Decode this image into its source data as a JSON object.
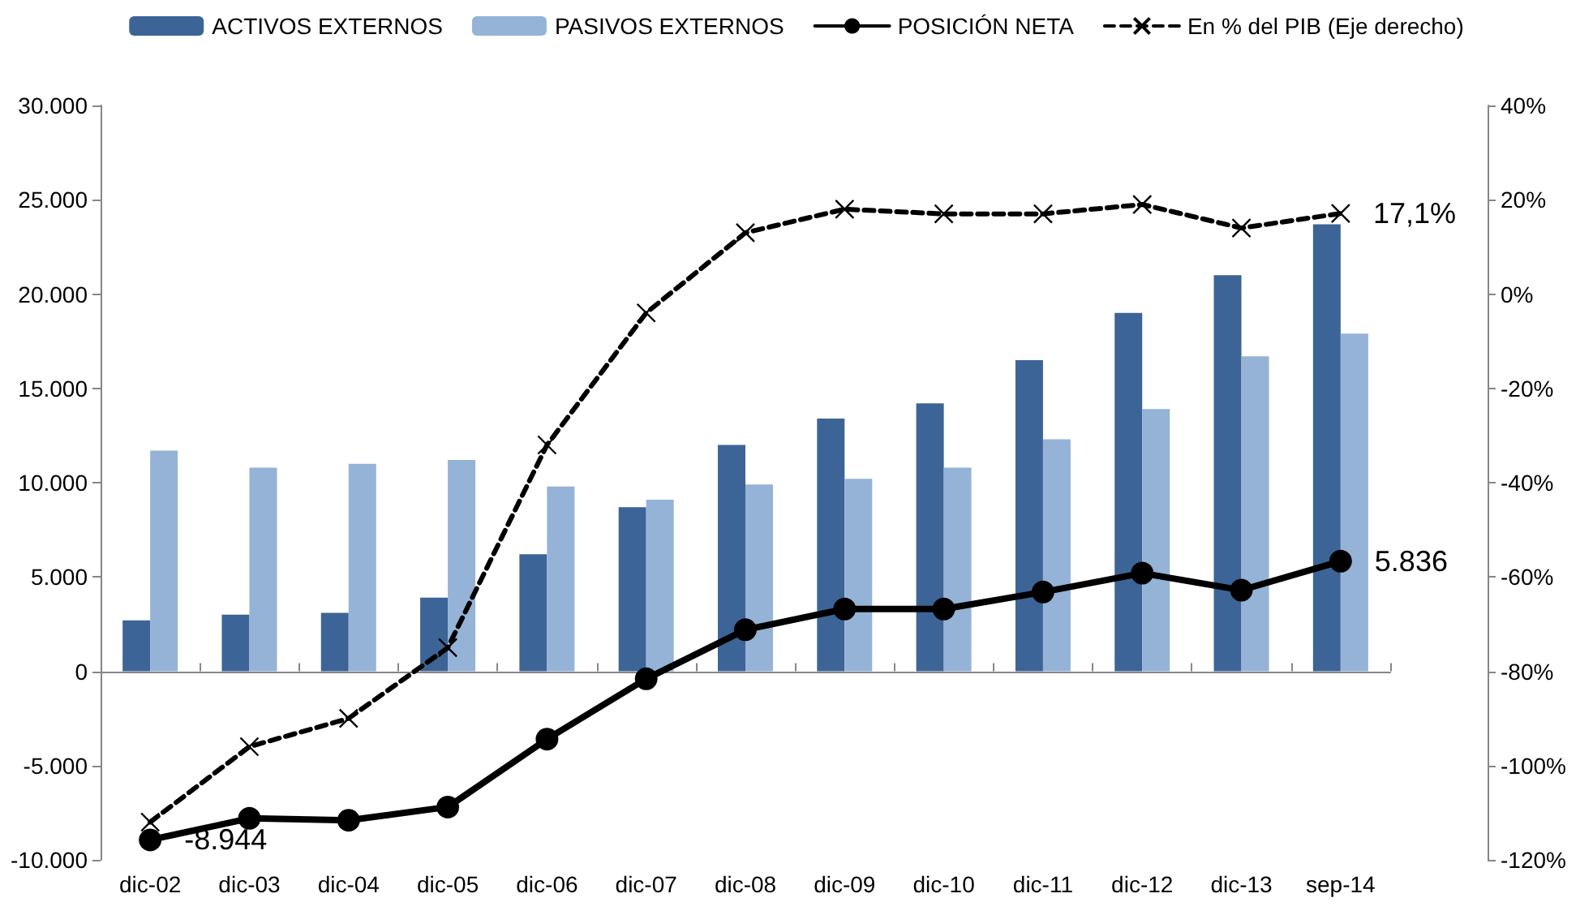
{
  "chart_data": {
    "type": "bar",
    "categories": [
      "dic-02",
      "dic-03",
      "dic-04",
      "dic-05",
      "dic-06",
      "dic-07",
      "dic-08",
      "dic-09",
      "dic-10",
      "dic-11",
      "dic-12",
      "dic-13",
      "sep-14"
    ],
    "series": [
      {
        "name": "ACTIVOS EXTERNOS",
        "color": "#3d6496",
        "values": [
          2700,
          3000,
          3100,
          3900,
          6200,
          8700,
          12000,
          13400,
          14200,
          16500,
          19000,
          21000,
          23700
        ]
      },
      {
        "name": "PASIVOS EXTERNOS",
        "color": "#95b3d7",
        "values": [
          11700,
          10800,
          11000,
          11200,
          9800,
          9100,
          9900,
          10200,
          10800,
          12300,
          13900,
          16700,
          17900
        ]
      },
      {
        "name": "POSICIÓN NETA",
        "type": "line",
        "color": "#000000",
        "marker": "circle",
        "line_style": "solid",
        "values": [
          -8944,
          -7800,
          -7900,
          -7200,
          -3600,
          -400,
          2200,
          3300,
          3300,
          4200,
          5200,
          4300,
          5836
        ],
        "value_labels": [
          "-8.944",
          null,
          null,
          null,
          null,
          null,
          null,
          null,
          null,
          null,
          null,
          null,
          "5.836"
        ]
      },
      {
        "name": "En % del PIB (Eje derecho)",
        "type": "line",
        "axis": "y2",
        "color": "#000000",
        "marker": "cross",
        "line_style": "dashed",
        "values": [
          -112,
          -96,
          -90,
          -75,
          -32,
          -4,
          13,
          18,
          17,
          17,
          19,
          14,
          17.1
        ],
        "value_labels": [
          null,
          null,
          null,
          null,
          null,
          null,
          null,
          null,
          null,
          null,
          null,
          null,
          "17,1%"
        ]
      }
    ],
    "ylim": [
      -10000,
      30000
    ],
    "yticks": [
      {
        "value": -10000,
        "label": "-10.000"
      },
      {
        "value": -5000,
        "label": "-5.000"
      },
      {
        "value": 0,
        "label": "0"
      },
      {
        "value": 5000,
        "label": "5.000"
      },
      {
        "value": 10000,
        "label": "10.000"
      },
      {
        "value": 15000,
        "label": "15.000"
      },
      {
        "value": 20000,
        "label": "20.000"
      },
      {
        "value": 25000,
        "label": "25.000"
      },
      {
        "value": 30000,
        "label": "30.000"
      }
    ],
    "y2lim": [
      -120,
      40
    ],
    "y2ticks": [
      {
        "value": -120,
        "label": "-120%"
      },
      {
        "value": -100,
        "label": "-100%"
      },
      {
        "value": -80,
        "label": "-80%"
      },
      {
        "value": -60,
        "label": "-60%"
      },
      {
        "value": -40,
        "label": "-40%"
      },
      {
        "value": -20,
        "label": "-20%"
      },
      {
        "value": 0,
        "label": "0%"
      },
      {
        "value": 20,
        "label": "20%"
      },
      {
        "value": 40,
        "label": "40%"
      }
    ],
    "legend": "top"
  }
}
